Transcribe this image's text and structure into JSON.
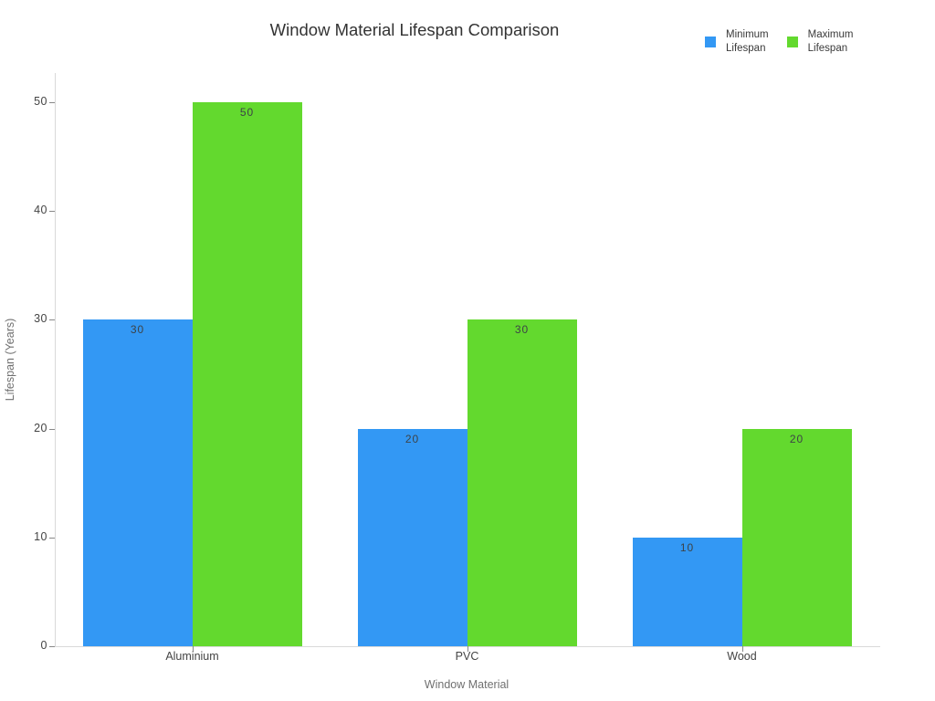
{
  "chart_data": {
    "type": "bar",
    "title": "Window Material Lifespan Comparison",
    "xlabel": "Window Material",
    "ylabel": "Lifespan (Years)",
    "categories": [
      "Aluminium",
      "PVC",
      "Wood"
    ],
    "series": [
      {
        "name": "Minimum Lifespan",
        "legend_label": "Minimum\nLifespan",
        "color": "#3398F4",
        "values": [
          30,
          20,
          10
        ]
      },
      {
        "name": "Maximum Lifespan",
        "legend_label": "Maximum\nLifespan",
        "color": "#63D92E",
        "values": [
          50,
          30,
          20
        ]
      }
    ],
    "ylim": [
      0,
      50
    ],
    "yticks": [
      0,
      10,
      20,
      30,
      40,
      50
    ],
    "grid": false,
    "legend_position": "top-right",
    "bar_value_labels": true,
    "colors": {
      "background": "#ffffff",
      "title": "#333333",
      "axis_line": "#d9d9d9",
      "tick_mark": "#888888",
      "tick_label": "#444444",
      "axis_title": "#707070",
      "bar_label": "#3d4347"
    }
  }
}
